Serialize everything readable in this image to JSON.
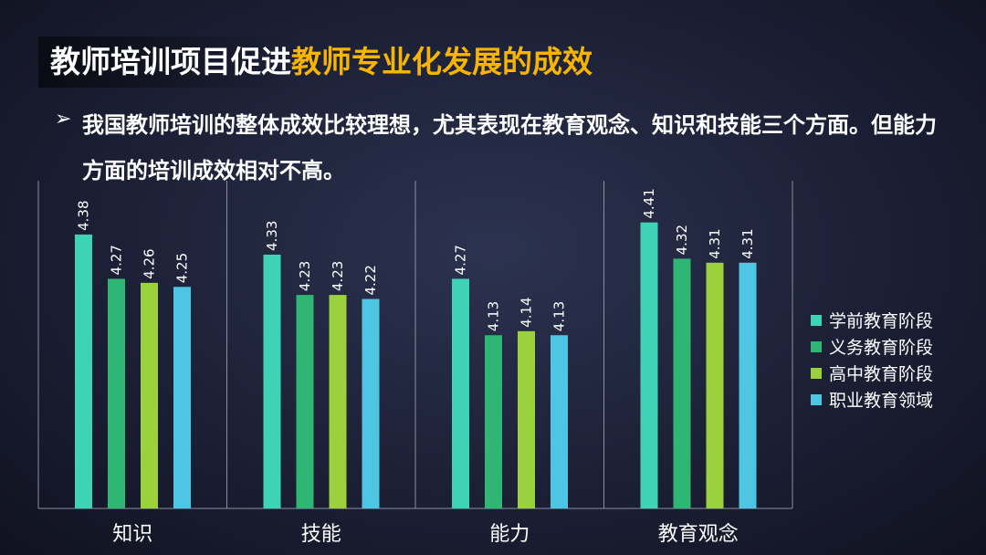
{
  "slide": {
    "title_plain": "教师培训项目促进",
    "title_highlight": "教师专业化发展的成效",
    "bullet_arrow": "➢",
    "bullet_text": "我国教师培训的整体成效比较理想，尤其表现在教育观念、知识和技能三个方面。但能力方面的培训成效相对不高。"
  },
  "colors": {
    "title_highlight": "#f7b500",
    "series": [
      "#3fd3b5",
      "#2fb574",
      "#9bd13c",
      "#4ec5e3"
    ]
  },
  "chart_data": {
    "type": "bar",
    "categories": [
      "知识",
      "技能",
      "能力",
      "教育观念"
    ],
    "series": [
      {
        "name": "学前教育阶段",
        "values": [
          4.38,
          4.33,
          4.27,
          4.41
        ]
      },
      {
        "name": "义务教育阶段",
        "values": [
          4.27,
          4.23,
          4.13,
          4.32
        ]
      },
      {
        "name": "高中教育阶段",
        "values": [
          4.26,
          4.23,
          4.14,
          4.31
        ]
      },
      {
        "name": "职业教育领域",
        "values": [
          4.25,
          4.22,
          4.13,
          4.31
        ]
      }
    ],
    "title": "",
    "xlabel": "",
    "ylabel": "",
    "ylim": [
      3.7,
      4.45
    ],
    "grid": false,
    "value_labels": true,
    "legend_position": "right"
  }
}
